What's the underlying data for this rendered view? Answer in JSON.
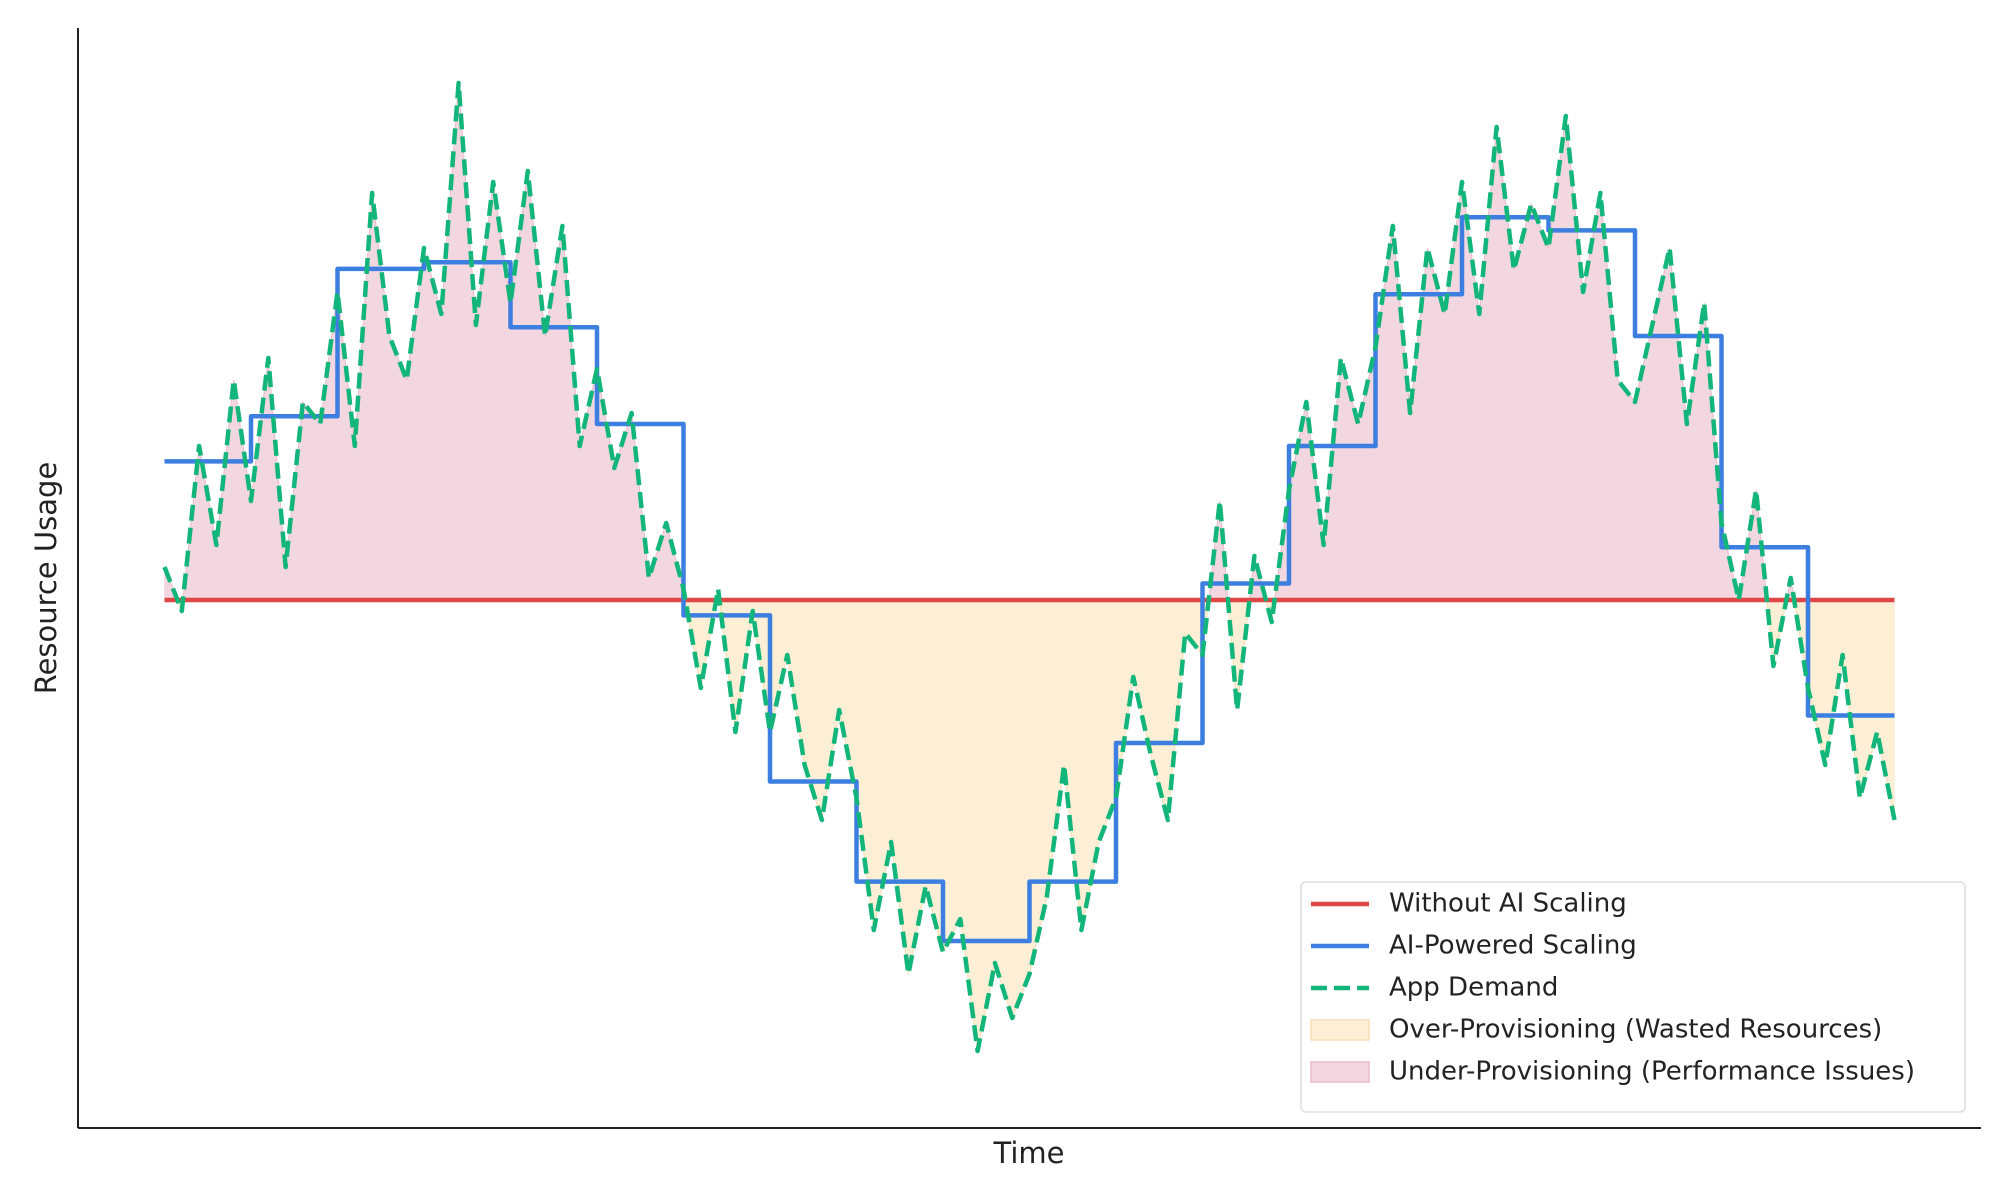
{
  "chart_data": {
    "type": "line",
    "xlabel": "Time",
    "ylabel": "Resource Usage",
    "xlim": [
      -5,
      105
    ],
    "ylim": [
      0,
      100
    ],
    "x": [
      0,
      1,
      2,
      3,
      4,
      5,
      6,
      7,
      8,
      9,
      10,
      11,
      12,
      13,
      14,
      15,
      16,
      17,
      18,
      19,
      20,
      21,
      22,
      23,
      24,
      25,
      26,
      27,
      28,
      29,
      30,
      31,
      32,
      33,
      34,
      35,
      36,
      37,
      38,
      39,
      40,
      41,
      42,
      43,
      44,
      45,
      46,
      47,
      48,
      49,
      50,
      51,
      52,
      53,
      54,
      55,
      56,
      57,
      58,
      59,
      60,
      61,
      62,
      63,
      64,
      65,
      66,
      67,
      68,
      69,
      70,
      71,
      72,
      73,
      74,
      75,
      76,
      77,
      78,
      79,
      80,
      81,
      82,
      83,
      84,
      85,
      86,
      87,
      88,
      89,
      90,
      91,
      92,
      93,
      94,
      95,
      96,
      97,
      98,
      99,
      100
    ],
    "series": [
      {
        "name": "Without AI Scaling",
        "color": "#e04646",
        "dash": false,
        "drawstyle": "default",
        "values": [
          48,
          48,
          48,
          48,
          48,
          48,
          48,
          48,
          48,
          48,
          48,
          48,
          48,
          48,
          48,
          48,
          48,
          48,
          48,
          48,
          48,
          48,
          48,
          48,
          48,
          48,
          48,
          48,
          48,
          48,
          48,
          48,
          48,
          48,
          48,
          48,
          48,
          48,
          48,
          48,
          48,
          48,
          48,
          48,
          48,
          48,
          48,
          48,
          48,
          48,
          48,
          48,
          48,
          48,
          48,
          48,
          48,
          48,
          48,
          48,
          48,
          48,
          48,
          48,
          48,
          48,
          48,
          48,
          48,
          48,
          48,
          48,
          48,
          48,
          48,
          48,
          48,
          48,
          48,
          48,
          48,
          48,
          48,
          48,
          48,
          48,
          48,
          48,
          48,
          48,
          48,
          48,
          48,
          48,
          48,
          48,
          48,
          48,
          48,
          48,
          48
        ]
      },
      {
        "name": "AI-Powered Scaling",
        "color": "#3d7fe0",
        "dash": false,
        "drawstyle": "steps-post",
        "values": [
          60.6,
          60.6,
          60.6,
          60.6,
          60.6,
          64.7,
          64.7,
          64.7,
          64.7,
          64.7,
          78.1,
          78.1,
          78.1,
          78.1,
          78.1,
          78.7,
          78.7,
          78.7,
          78.7,
          78.7,
          72.8,
          72.8,
          72.8,
          72.8,
          72.8,
          64.0,
          64.0,
          64.0,
          64.0,
          64.0,
          46.6,
          46.6,
          46.6,
          46.6,
          46.6,
          31.5,
          31.5,
          31.5,
          31.5,
          31.5,
          22.4,
          22.4,
          22.4,
          22.4,
          22.4,
          17.0,
          17.0,
          17.0,
          17.0,
          17.0,
          22.4,
          22.4,
          22.4,
          22.4,
          22.4,
          35.0,
          35.0,
          35.0,
          35.0,
          35.0,
          49.5,
          49.5,
          49.5,
          49.5,
          49.5,
          62.0,
          62.0,
          62.0,
          62.0,
          62.0,
          75.8,
          75.8,
          75.8,
          75.8,
          75.8,
          82.8,
          82.8,
          82.8,
          82.8,
          82.8,
          81.6,
          81.6,
          81.6,
          81.6,
          81.6,
          72.0,
          72.0,
          72.0,
          72.0,
          72.0,
          52.8,
          52.8,
          52.8,
          52.8,
          52.8,
          37.5,
          37.5,
          37.5,
          37.5,
          37.5,
          37.5
        ]
      },
      {
        "name": "App Demand",
        "color": "#12b57a",
        "dash": true,
        "drawstyle": "default",
        "values": [
          51,
          47,
          62,
          53,
          68,
          57,
          70,
          51,
          66,
          64,
          76,
          62,
          85,
          72,
          68,
          80,
          74,
          95,
          73,
          86,
          75,
          87,
          72,
          82,
          62,
          69,
          60,
          65,
          50,
          55,
          49,
          40,
          49,
          36,
          47,
          36,
          43,
          33,
          28,
          38,
          30,
          18,
          26,
          14,
          22,
          16,
          19,
          7,
          15,
          10,
          14,
          21,
          33,
          18,
          26,
          30,
          41,
          34,
          28,
          45,
          43,
          57,
          38,
          52,
          46,
          58,
          66,
          53,
          70,
          64,
          71,
          82,
          65,
          80,
          74,
          86,
          74,
          91,
          78,
          84,
          80,
          92,
          76,
          85,
          68,
          66,
          73,
          80,
          64,
          75,
          55,
          48,
          58,
          42,
          50,
          40,
          33,
          43,
          30,
          36,
          28
        ]
      }
    ],
    "fills": [
      {
        "name": "Over-Provisioning (Wasted Resources)",
        "color": "#fcefd6",
        "edge": "#f5dfb3",
        "where": "below"
      },
      {
        "name": "Under-Provisioning (Performance Issues)",
        "color": "#f3d7e0",
        "edge": "#e8bccb",
        "where": "above"
      }
    ],
    "legend": "lower right"
  }
}
